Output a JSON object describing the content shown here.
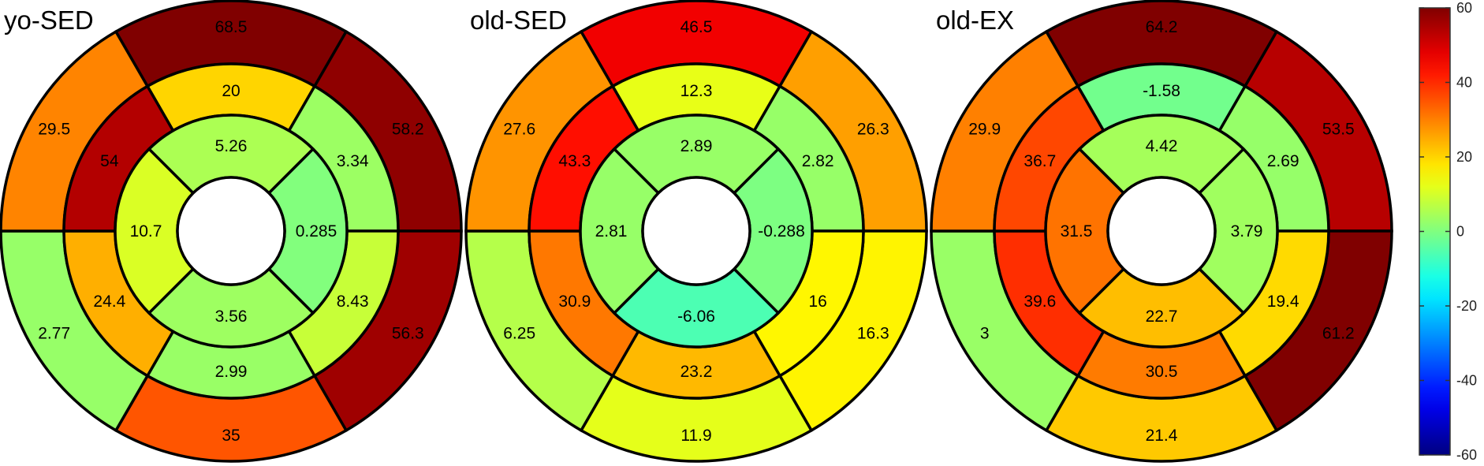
{
  "chart_data": {
    "type": "bullseye",
    "colormap": "jet",
    "colorbar": {
      "min": -60,
      "max": 60,
      "ticks": [
        "60",
        "40",
        "20",
        "0",
        "-20",
        "-40",
        "-60"
      ]
    },
    "ring_order": [
      "outer ring (6 segments, clockwise from top)",
      "middle ring (6 segments, clockwise from top)",
      "inner ring (4 segments, clockwise from top)"
    ],
    "plots": [
      {
        "title": "yo-SED",
        "outer": [
          68.5,
          58.2,
          56.3,
          35,
          2.77,
          29.5
        ],
        "middle": [
          20,
          3.34,
          8.43,
          2.99,
          24.4,
          54
        ],
        "inner": [
          5.26,
          0.285,
          3.56,
          10.7
        ]
      },
      {
        "title": "old-SED",
        "outer": [
          46.5,
          26.3,
          16.3,
          11.9,
          6.25,
          27.6
        ],
        "middle": [
          12.3,
          2.82,
          16,
          23.2,
          30.9,
          43.3
        ],
        "inner": [
          2.89,
          -0.288,
          -6.06,
          2.81
        ]
      },
      {
        "title": "old-EX",
        "outer": [
          64.2,
          53.5,
          61.2,
          21.4,
          3,
          29.9
        ],
        "middle": [
          -1.58,
          2.69,
          19.4,
          30.5,
          39.6,
          36.7
        ],
        "inner": [
          4.42,
          3.79,
          22.7,
          31.5
        ]
      }
    ]
  }
}
